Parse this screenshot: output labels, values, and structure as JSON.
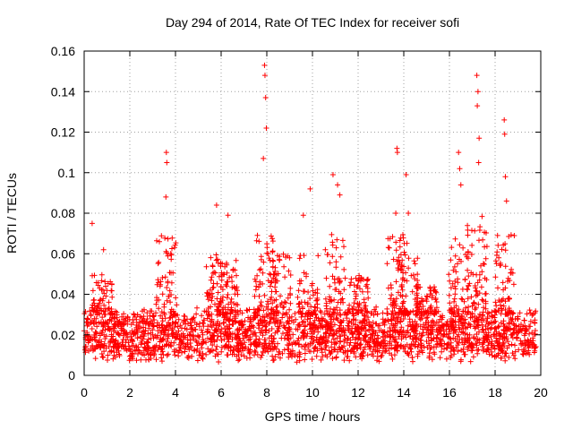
{
  "chart_data": {
    "type": "scatter",
    "title": "Day 294 of 2014, Rate Of TEC Index for receiver sofi",
    "xlabel": "GPS time / hours",
    "ylabel": "ROTI / TECUs",
    "xlim": [
      0,
      20
    ],
    "ylim": [
      0,
      0.16
    ],
    "xticks": [
      "0",
      "2",
      "4",
      "6",
      "8",
      "10",
      "12",
      "14",
      "16",
      "18",
      "20"
    ],
    "yticks": [
      "0",
      "0.02",
      "0.04",
      "0.06",
      "0.08",
      "0.1",
      "0.12",
      "0.14",
      "0.16"
    ],
    "grid": true,
    "marker": "+",
    "series_color": "#ff0000",
    "baseline_band": [
      0.01,
      0.03
    ],
    "x_end_of_data": 19.8,
    "highlighted_points": [
      {
        "x": 0.35,
        "y": 0.075
      },
      {
        "x": 0.85,
        "y": 0.062
      },
      {
        "x": 3.6,
        "y": 0.11
      },
      {
        "x": 3.62,
        "y": 0.105
      },
      {
        "x": 3.58,
        "y": 0.088
      },
      {
        "x": 5.8,
        "y": 0.084
      },
      {
        "x": 6.3,
        "y": 0.079
      },
      {
        "x": 7.9,
        "y": 0.153
      },
      {
        "x": 7.92,
        "y": 0.148
      },
      {
        "x": 7.95,
        "y": 0.137
      },
      {
        "x": 7.98,
        "y": 0.122
      },
      {
        "x": 7.85,
        "y": 0.107
      },
      {
        "x": 9.6,
        "y": 0.079
      },
      {
        "x": 9.9,
        "y": 0.092
      },
      {
        "x": 10.9,
        "y": 0.099
      },
      {
        "x": 11.1,
        "y": 0.094
      },
      {
        "x": 11.2,
        "y": 0.089
      },
      {
        "x": 13.7,
        "y": 0.112
      },
      {
        "x": 13.72,
        "y": 0.11
      },
      {
        "x": 13.65,
        "y": 0.08
      },
      {
        "x": 14.1,
        "y": 0.099
      },
      {
        "x": 14.2,
        "y": 0.08
      },
      {
        "x": 16.4,
        "y": 0.11
      },
      {
        "x": 16.45,
        "y": 0.102
      },
      {
        "x": 16.5,
        "y": 0.094
      },
      {
        "x": 17.2,
        "y": 0.148
      },
      {
        "x": 17.25,
        "y": 0.14
      },
      {
        "x": 17.22,
        "y": 0.133
      },
      {
        "x": 17.3,
        "y": 0.117
      },
      {
        "x": 17.28,
        "y": 0.105
      },
      {
        "x": 18.4,
        "y": 0.126
      },
      {
        "x": 18.42,
        "y": 0.119
      },
      {
        "x": 18.45,
        "y": 0.098
      },
      {
        "x": 18.5,
        "y": 0.086
      }
    ]
  }
}
